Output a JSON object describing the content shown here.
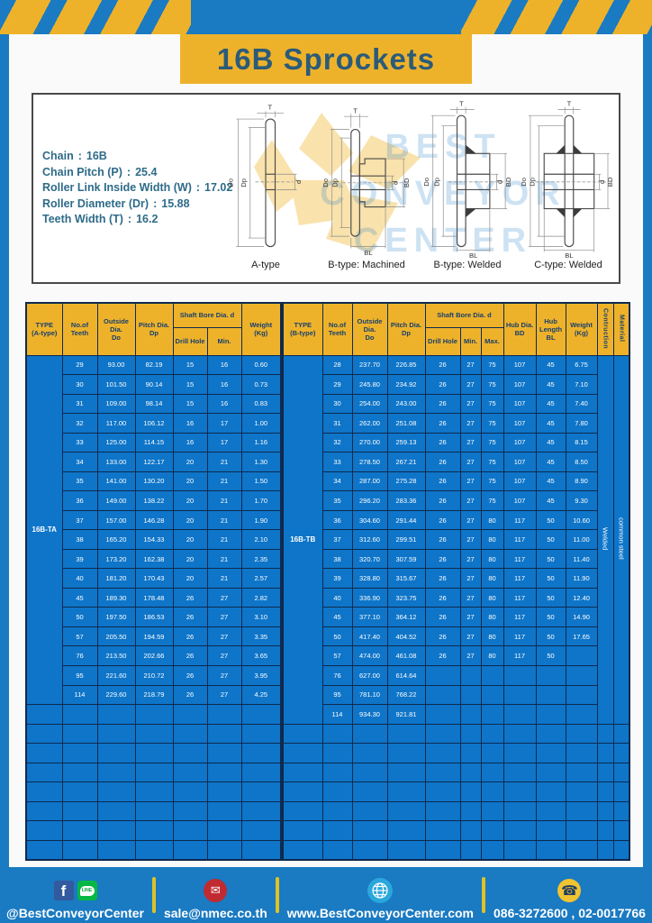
{
  "page": {
    "title": "16B Sprockets"
  },
  "colors": {
    "frame_blue": "#1a7ac2",
    "cell_blue": "#0e75c9",
    "accent_yellow": "#eeb22a",
    "header_text_navy": "#173f6e",
    "title_text": "#2b5b79",
    "spec_text": "#2e6b88"
  },
  "specs": {
    "sep": ":",
    "rows": [
      {
        "label": "Chain",
        "value": "16B"
      },
      {
        "label": "Chain Pitch (P)",
        "value": "25.4"
      },
      {
        "label": "Roller Link Inside Width (W)",
        "value": "17.02"
      },
      {
        "label": "Roller Diameter (Dr)",
        "value": "15.88"
      },
      {
        "label": "Teeth Width (T)",
        "value": "16.2"
      }
    ],
    "diagram_captions": [
      "A-type",
      "B-type: Machined",
      "B-type: Welded",
      "C-type: Welded"
    ],
    "dim_labels": {
      "t": "T",
      "do": "Do",
      "dp": "Dp",
      "d": "d",
      "bd": "BD",
      "bl": "BL"
    }
  },
  "watermark": {
    "lines": [
      "BEST",
      "CONVEYOR",
      "CENTER"
    ]
  },
  "tables": {
    "left": {
      "type_label": "16B-TA",
      "headers": {
        "type": [
          "TYPE",
          "(A-type)"
        ],
        "teeth": [
          "No.of",
          "Teeth"
        ],
        "outside": [
          "Outside",
          "Dia.",
          "Do"
        ],
        "pitch": [
          "Pitch Dia.",
          "Dp"
        ],
        "shaft_bore": "Shaft Bore Dia. d",
        "drill": "Drill Hole",
        "min": "Min.",
        "weight": [
          "Weight",
          "(Kg)"
        ]
      },
      "rows": [
        [
          "29",
          "93.00",
          "82.19",
          "15",
          "16",
          "0.60"
        ],
        [
          "30",
          "101.50",
          "90.14",
          "15",
          "16",
          "0.73"
        ],
        [
          "31",
          "109.00",
          "98.14",
          "15",
          "16",
          "0.83"
        ],
        [
          "32",
          "117.00",
          "106.12",
          "16",
          "17",
          "1.00"
        ],
        [
          "33",
          "125.00",
          "114.15",
          "16",
          "17",
          "1.16"
        ],
        [
          "34",
          "133.00",
          "122.17",
          "20",
          "21",
          "1.30"
        ],
        [
          "35",
          "141.00",
          "130.20",
          "20",
          "21",
          "1.50"
        ],
        [
          "36",
          "149.00",
          "138.22",
          "20",
          "21",
          "1.70"
        ],
        [
          "37",
          "157.00",
          "146.28",
          "20",
          "21",
          "1.90"
        ],
        [
          "38",
          "165.20",
          "154.33",
          "20",
          "21",
          "2.10"
        ],
        [
          "39",
          "173.20",
          "162.38",
          "20",
          "21",
          "2.35"
        ],
        [
          "40",
          "181.20",
          "170.43",
          "20",
          "21",
          "2.57"
        ],
        [
          "45",
          "189.30",
          "178.48",
          "26",
          "27",
          "2.82"
        ],
        [
          "50",
          "197.50",
          "186.53",
          "26",
          "27",
          "3.10"
        ],
        [
          "57",
          "205.50",
          "194.59",
          "26",
          "27",
          "3.35"
        ],
        [
          "76",
          "213.50",
          "202.66",
          "26",
          "27",
          "3.65"
        ],
        [
          "95",
          "221.60",
          "210.72",
          "26",
          "27",
          "3.95"
        ],
        [
          "114",
          "229.60",
          "218.79",
          "26",
          "27",
          "4.25"
        ]
      ],
      "empty_rows": 8
    },
    "right": {
      "type_label": "16B-TB",
      "headers": {
        "type": [
          "TYPE",
          "(B-type)"
        ],
        "teeth": [
          "No.of",
          "Teeth"
        ],
        "outside": [
          "Outside",
          "Dia.",
          "Do"
        ],
        "pitch": [
          "Pitch Dia.",
          "Dp"
        ],
        "shaft_bore": "Shaft Bore Dia. d",
        "drill": "Drill Hole",
        "min": "Min.",
        "max": "Max.",
        "hub_dia": [
          "Hub Dia.",
          "BD"
        ],
        "hub_length": [
          "Hub",
          "Length",
          "BL"
        ],
        "weight": [
          "Weight",
          "(Kg)"
        ],
        "construction": "Contruction",
        "material": "Material"
      },
      "rows": [
        [
          "28",
          "237.70",
          "226.85",
          "26",
          "27",
          "75",
          "107",
          "45",
          "6.75"
        ],
        [
          "29",
          "245.80",
          "234.92",
          "26",
          "27",
          "75",
          "107",
          "45",
          "7.10"
        ],
        [
          "30",
          "254.00",
          "243.00",
          "26",
          "27",
          "75",
          "107",
          "45",
          "7.40"
        ],
        [
          "31",
          "262.00",
          "251.08",
          "26",
          "27",
          "75",
          "107",
          "45",
          "7.80"
        ],
        [
          "32",
          "270.00",
          "259.13",
          "26",
          "27",
          "75",
          "107",
          "45",
          "8.15"
        ],
        [
          "33",
          "278.50",
          "267.21",
          "26",
          "27",
          "75",
          "107",
          "45",
          "8.50"
        ],
        [
          "34",
          "287.00",
          "275.28",
          "26",
          "27",
          "75",
          "107",
          "45",
          "8.90"
        ],
        [
          "35",
          "296.20",
          "283.36",
          "26",
          "27",
          "75",
          "107",
          "45",
          "9.30"
        ],
        [
          "36",
          "304.60",
          "291.44",
          "26",
          "27",
          "80",
          "117",
          "50",
          "10.60"
        ],
        [
          "37",
          "312.60",
          "299.51",
          "26",
          "27",
          "80",
          "117",
          "50",
          "11.00"
        ],
        [
          "38",
          "320.70",
          "307.59",
          "26",
          "27",
          "80",
          "117",
          "50",
          "11.40"
        ],
        [
          "39",
          "328.80",
          "315.67",
          "26",
          "27",
          "80",
          "117",
          "50",
          "11.90"
        ],
        [
          "40",
          "336.90",
          "323.75",
          "26",
          "27",
          "80",
          "117",
          "50",
          "12.40"
        ],
        [
          "45",
          "377.10",
          "364.12",
          "26",
          "27",
          "80",
          "117",
          "50",
          "14.90"
        ],
        [
          "50",
          "417.40",
          "404.52",
          "26",
          "27",
          "80",
          "117",
          "50",
          "17.65"
        ],
        [
          "57",
          "474.00",
          "461.08",
          "26",
          "27",
          "80",
          "117",
          "50",
          ""
        ],
        [
          "76",
          "627.00",
          "614.64",
          "",
          "",
          "",
          "",
          "",
          ""
        ],
        [
          "95",
          "781.10",
          "768.22",
          "",
          "",
          "",
          "",
          "",
          ""
        ],
        [
          "114",
          "934.30",
          "921.81",
          "",
          "",
          "",
          "",
          "",
          ""
        ]
      ],
      "construction_value": "Welded",
      "material_value": "common steel",
      "empty_rows": 7
    }
  },
  "footer": {
    "handle": "@BestConveyorCenter",
    "email": "sale@nmec.co.th",
    "website": "www.BestConveyorCenter.com",
    "phone": "086-3272600 , 02-0017766",
    "fb_glyph": "f",
    "line_label": "LINE",
    "email_glyph": "✉",
    "phone_glyph": "☎"
  }
}
